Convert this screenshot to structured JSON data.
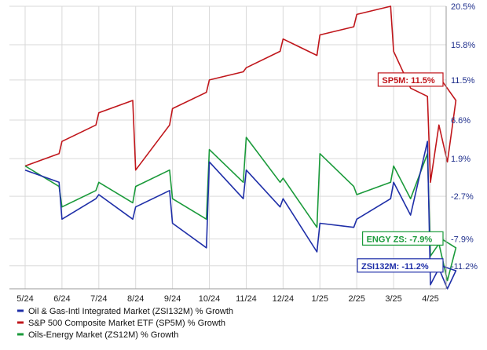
{
  "chart_data": {
    "type": "line",
    "title": "",
    "xlabel": "",
    "ylabel": "",
    "ylim": [
      -14,
      20.5
    ],
    "grid": true,
    "legend_position": "bottom-left",
    "x_ticks": [
      "5/24",
      "6/24",
      "7/24",
      "8/24",
      "9/24",
      "10/24",
      "11/24",
      "12/24",
      "1/25",
      "2/25",
      "3/25",
      "4/25"
    ],
    "y_ticks": [
      {
        "value": 20.5,
        "label": "20.5%"
      },
      {
        "value": 15.8,
        "label": "15.8%"
      },
      {
        "value": 11.5,
        "label": "11.5%"
      },
      {
        "value": 6.6,
        "label": "6.6%"
      },
      {
        "value": 1.9,
        "label": "1.9%"
      },
      {
        "value": -2.7,
        "label": "-2.7%"
      },
      {
        "value": -7.9,
        "label": "-7.9%"
      },
      {
        "value": -11.2,
        "label": "-11.2%"
      }
    ],
    "series": [
      {
        "name": "Oil & Gas-Intl Integrated Market (ZSI132M) % Growth",
        "color": "#1f2fa8",
        "callout": "ZSI132M: -11.2%",
        "x": [
          "5/24",
          "5/24",
          "6/24",
          "6/24",
          "7/24",
          "7/24",
          "8/24",
          "8/24",
          "9/24",
          "9/24",
          "10/24",
          "10/24",
          "11/24",
          "11/24",
          "12/24",
          "12/24",
          "1/25",
          "1/25",
          "2/25",
          "2/25",
          "3/25",
          "3/25",
          "3/25",
          "4/25",
          "4/25",
          "4/25",
          "4/25",
          "4/25"
        ],
        "values": [
          0.5,
          -1.0,
          -5.5,
          -3.0,
          -2.5,
          -5.5,
          -4.0,
          -2.0,
          -6.0,
          -9.0,
          1.5,
          -3.0,
          0.5,
          -4.0,
          -3.0,
          -9.5,
          -6.0,
          -6.5,
          -5.5,
          -3.0,
          -1.0,
          -5.0,
          4.0,
          -13.5,
          -11.5,
          -14.0,
          -11.8,
          -11.2
        ]
      },
      {
        "name": "S&P 500 Composite Market ETF (SP5M) % Growth",
        "color": "#c0161b",
        "callout": "SP5M: 11.5%",
        "x": [
          "5/24",
          "5/24",
          "6/24",
          "6/24",
          "7/24",
          "7/24",
          "8/24",
          "8/24",
          "9/24",
          "9/24",
          "10/24",
          "10/24",
          "11/24",
          "11/24",
          "12/24",
          "12/24",
          "1/25",
          "1/25",
          "2/25",
          "2/25",
          "3/25",
          "3/25",
          "3/25",
          "4/25",
          "4/25",
          "4/25",
          "4/25",
          "4/25"
        ],
        "values": [
          1.0,
          2.5,
          4.0,
          6.0,
          7.5,
          9.0,
          0.5,
          6.0,
          8.0,
          10.0,
          11.5,
          12.5,
          13.0,
          15.0,
          16.5,
          14.5,
          17.0,
          18.0,
          19.5,
          20.5,
          15.0,
          10.5,
          9.5,
          -1.0,
          6.0,
          1.5,
          9.0,
          11.5
        ]
      },
      {
        "name": "Oils-Energy Market (ZS12M) % Growth",
        "color": "#1a9a3a",
        "callout": "ENGY ZS: -7.9%",
        "x": [
          "5/24",
          "5/24",
          "6/24",
          "6/24",
          "7/24",
          "7/24",
          "8/24",
          "8/24",
          "9/24",
          "9/24",
          "10/24",
          "10/24",
          "11/24",
          "11/24",
          "12/24",
          "12/24",
          "1/25",
          "1/25",
          "2/25",
          "2/25",
          "3/25",
          "3/25",
          "3/25",
          "4/25",
          "4/25",
          "4/25",
          "4/25",
          "4/25"
        ],
        "values": [
          1.0,
          -1.5,
          -4.0,
          -2.0,
          -1.0,
          -3.5,
          -1.5,
          0.5,
          -3.0,
          -5.5,
          3.0,
          -1.0,
          4.5,
          -1.0,
          -0.5,
          -6.5,
          2.5,
          -1.5,
          -2.5,
          -1.0,
          1.0,
          -3.0,
          2.5,
          -10.0,
          -8.5,
          -13.0,
          -9.0,
          -7.9
        ]
      }
    ]
  }
}
